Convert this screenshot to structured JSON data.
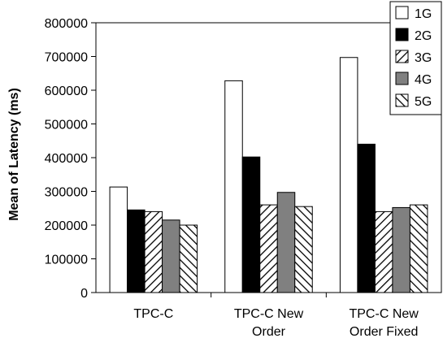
{
  "chart_data": {
    "type": "bar",
    "title": "",
    "xlabel": "",
    "ylabel": "Mean of Latency (ms)",
    "ylim": [
      0,
      800000
    ],
    "yticks": [
      0,
      100000,
      200000,
      300000,
      400000,
      500000,
      600000,
      700000,
      800000
    ],
    "categories": [
      "TPC-C",
      "TPC-C New Order",
      "TPC-C New Order Fixed"
    ],
    "category_label_lines": [
      [
        "TPC-C"
      ],
      [
        "TPC-C New",
        "Order"
      ],
      [
        "TPC-C New",
        "Order Fixed"
      ]
    ],
    "grid": false,
    "legend_position": "top-right",
    "series": [
      {
        "name": "1G",
        "values": [
          313000,
          628000,
          697000
        ],
        "fill": "#ffffff",
        "pattern": "solid"
      },
      {
        "name": "2G",
        "values": [
          245000,
          402000,
          440000
        ],
        "fill": "#000000",
        "pattern": "solid"
      },
      {
        "name": "3G",
        "values": [
          240000,
          260000,
          240000
        ],
        "fill": "#ffffff",
        "pattern": "hatch-forward"
      },
      {
        "name": "4G",
        "values": [
          215000,
          297000,
          252000
        ],
        "fill": "#808080",
        "pattern": "solid"
      },
      {
        "name": "5G",
        "values": [
          200000,
          255000,
          260000
        ],
        "fill": "#ffffff",
        "pattern": "hatch-backward"
      }
    ]
  }
}
